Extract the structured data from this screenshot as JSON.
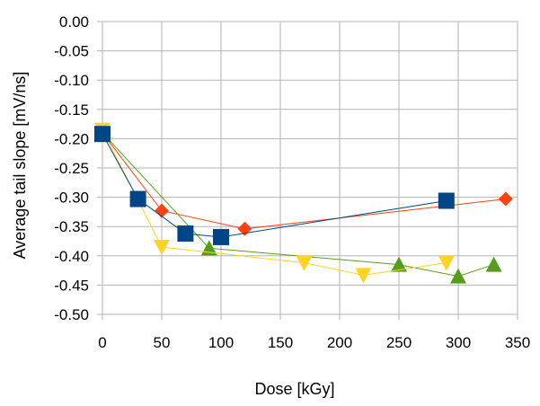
{
  "chart_data": {
    "type": "scatter",
    "title": "",
    "xlabel": "Dose [kGy]",
    "ylabel": "Average tail slope [mV/ns]",
    "xlim": [
      0,
      350
    ],
    "ylim": [
      -0.5,
      0.0
    ],
    "xticks": [
      0,
      50,
      100,
      150,
      200,
      250,
      300,
      350
    ],
    "yticks": [
      0.0,
      -0.05,
      -0.1,
      -0.15,
      -0.2,
      -0.25,
      -0.3,
      -0.35,
      -0.4,
      -0.45,
      -0.5
    ],
    "xtick_labels": [
      "0",
      "50",
      "100",
      "150",
      "200",
      "250",
      "300",
      "350"
    ],
    "ytick_labels": [
      "0.00",
      "-0.05",
      "-0.10",
      "-0.15",
      "-0.20",
      "-0.25",
      "-0.30",
      "-0.35",
      "-0.40",
      "-0.45",
      "-0.50"
    ],
    "grid": true,
    "legend": "none",
    "series": [
      {
        "name": "series-red-diamond",
        "marker": "diamond",
        "color": "#ff420e",
        "x": [
          0,
          50,
          120,
          340
        ],
        "y": [
          -0.19,
          -0.323,
          -0.354,
          -0.303
        ]
      },
      {
        "name": "series-green-triangle",
        "marker": "triangle-up",
        "color": "#579d1c",
        "x": [
          0,
          90,
          250,
          300,
          330
        ],
        "y": [
          -0.19,
          -0.387,
          -0.415,
          -0.435,
          -0.415
        ]
      },
      {
        "name": "series-yellow-triangle",
        "marker": "triangle-down",
        "color": "#ffd320",
        "x": [
          0,
          50,
          170,
          220,
          290
        ],
        "y": [
          -0.185,
          -0.385,
          -0.412,
          -0.433,
          -0.412
        ]
      },
      {
        "name": "series-blue-square",
        "marker": "square",
        "color": "#004586",
        "x": [
          0,
          30,
          70,
          100,
          290
        ],
        "y": [
          -0.192,
          -0.303,
          -0.362,
          -0.368,
          -0.306
        ]
      }
    ]
  }
}
